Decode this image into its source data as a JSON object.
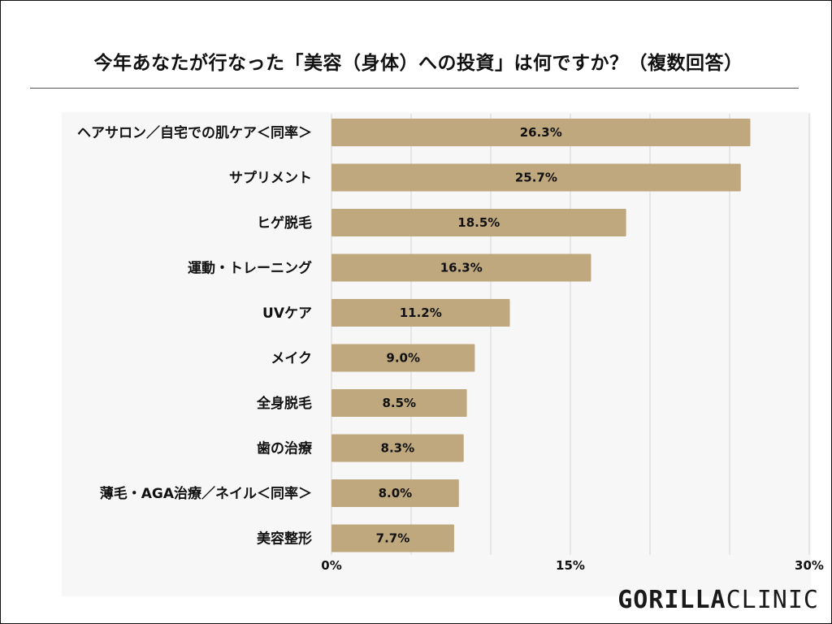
{
  "header": {
    "title": "今年あなたが行なった「美容（身体）への投資」は何ですか？（複数回答）"
  },
  "brand": {
    "part1": "GORILLA",
    "part2": "CLINIC"
  },
  "colors": {
    "bar": "#bfa77e",
    "grid": "#d6d6d6"
  },
  "chart_data": {
    "type": "bar",
    "orientation": "horizontal",
    "title": "今年あなたが行なった「美容（身体）への投資」は何ですか？（複数回答）",
    "categories": [
      "ヘアサロン／自宅での肌ケア＜同率＞",
      "サプリメント",
      "ヒゲ脱毛",
      "運動・トレーニング",
      "UVケア",
      "メイク",
      "全身脱毛",
      "歯の治療",
      "薄毛・AGA治療／ネイル＜同率＞",
      "美容整形"
    ],
    "values": [
      26.3,
      25.7,
      18.5,
      16.3,
      11.2,
      9.0,
      8.5,
      8.3,
      8.0,
      7.7
    ],
    "value_labels": [
      "26.3%",
      "25.7%",
      "18.5%",
      "16.3%",
      "11.2%",
      "9.0%",
      "8.5%",
      "8.3%",
      "8.0%",
      "7.7%"
    ],
    "xlim": [
      0,
      30
    ],
    "x_ticks": [
      0,
      15,
      30
    ],
    "x_tick_labels": [
      "0%",
      "15%",
      "30%"
    ],
    "grid": true,
    "xlabel": "",
    "ylabel": ""
  }
}
